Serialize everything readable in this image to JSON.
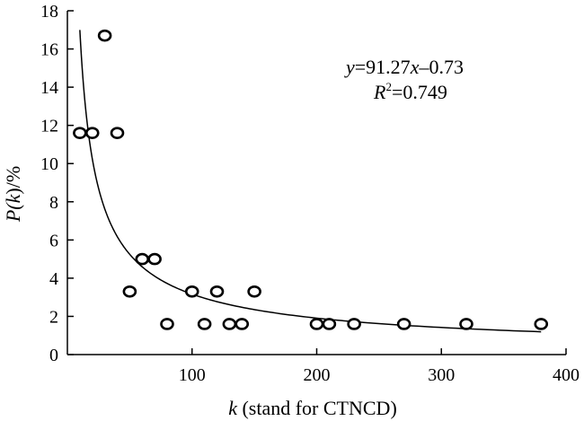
{
  "chart_data": {
    "type": "scatter",
    "title": "",
    "xlabel_var": "k",
    "xlabel_rest": " (stand for CTNCD)",
    "ylabel_var": "k",
    "ylabel_pre": "P(",
    "ylabel_post": ")/%",
    "xlim": [
      0,
      400
    ],
    "ylim": [
      0,
      18
    ],
    "xticks": [
      100,
      200,
      300,
      400
    ],
    "yticks": [
      0,
      2,
      4,
      6,
      8,
      10,
      12,
      14,
      16,
      18
    ],
    "grid": false,
    "points": [
      {
        "x": 10,
        "y": 11.6
      },
      {
        "x": 20,
        "y": 11.6
      },
      {
        "x": 30,
        "y": 16.7
      },
      {
        "x": 40,
        "y": 11.6
      },
      {
        "x": 50,
        "y": 3.3
      },
      {
        "x": 60,
        "y": 5.0
      },
      {
        "x": 70,
        "y": 5.0
      },
      {
        "x": 80,
        "y": 1.6
      },
      {
        "x": 100,
        "y": 3.3
      },
      {
        "x": 110,
        "y": 1.6
      },
      {
        "x": 120,
        "y": 3.3
      },
      {
        "x": 130,
        "y": 1.6
      },
      {
        "x": 140,
        "y": 1.6
      },
      {
        "x": 150,
        "y": 3.3
      },
      {
        "x": 200,
        "y": 1.6
      },
      {
        "x": 210,
        "y": 1.6
      },
      {
        "x": 230,
        "y": 1.6
      },
      {
        "x": 270,
        "y": 1.6
      },
      {
        "x": 320,
        "y": 1.6
      },
      {
        "x": 380,
        "y": 1.6
      }
    ],
    "fit": {
      "coefficient": 91.27,
      "exponent": -0.73,
      "x_range": [
        10,
        380
      ]
    },
    "annotation": {
      "eq_var_y": "y",
      "eq_mid": "=91.27",
      "eq_var_x": "x",
      "eq_tail": "–0.73",
      "r2_var": "R",
      "r2_sup": "2",
      "r2_value": "=0.749"
    }
  }
}
